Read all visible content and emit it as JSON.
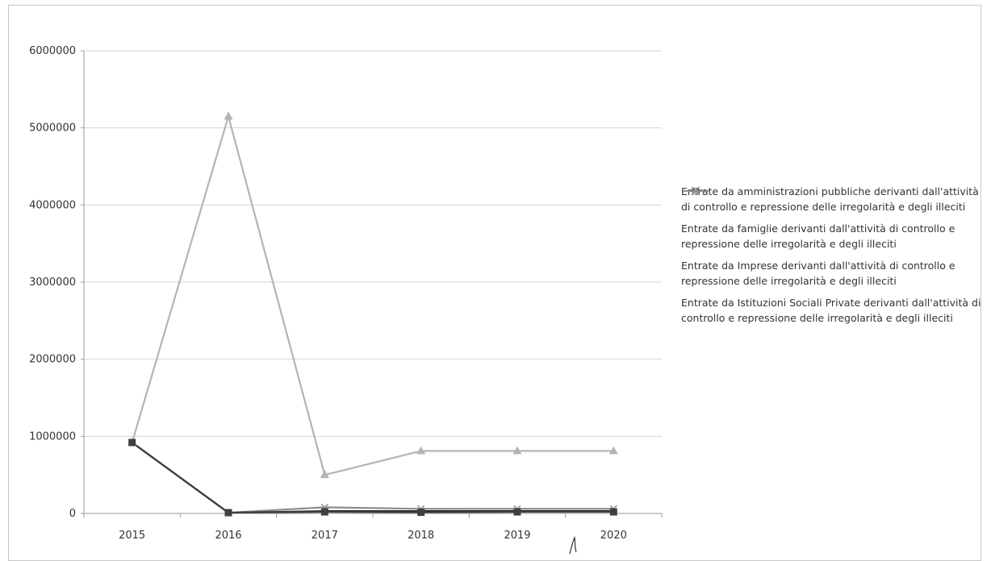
{
  "chart_data": {
    "type": "line",
    "x": [
      "2015",
      "2016",
      "2017",
      "2018",
      "2019",
      "2020"
    ],
    "y_ticks": [
      "0",
      "1000000",
      "2000000",
      "3000000",
      "4000000",
      "5000000",
      "6000000"
    ],
    "ylim": [
      0,
      6000000
    ],
    "grid": true,
    "legend_position": "right",
    "series": [
      {
        "name": "Entrate da amministrazioni pubbliche derivanti dall'attività di controllo e repressione delle irregolarità e degli illeciti",
        "values": [
          920000,
          10000,
          20000,
          15000,
          20000,
          20000
        ],
        "color": "#404040",
        "marker": "square"
      },
      {
        "name": "Entrate da famiglie derivanti dall'attività di controllo e repressione delle irregolarità e degli illeciti",
        "values": [
          920000,
          5150000,
          500000,
          810000,
          810000,
          810000
        ],
        "color": "#b4b4b4",
        "marker": "triangle"
      },
      {
        "name": "Entrate da Imprese derivanti dall'attività di controllo e repressione delle irregolarità e degli illeciti",
        "values": [
          920000,
          10000,
          30000,
          30000,
          30000,
          30000
        ],
        "color": "#222222",
        "marker": "none"
      },
      {
        "name": "Entrate da Istituzioni Sociali Private derivanti dall'attività di controllo e repressione delle irregolarità e degli illeciti",
        "values": [
          920000,
          10000,
          80000,
          60000,
          60000,
          60000
        ],
        "color": "#8c8c8c",
        "marker": "cross"
      }
    ]
  }
}
